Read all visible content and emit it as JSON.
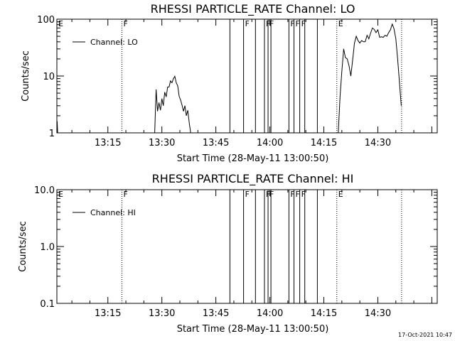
{
  "footer": {
    "date": "17-Oct-2021 10:47"
  },
  "chart_data": [
    {
      "type": "line",
      "title": "RHESSI PARTICLE_RATE Channel: LO",
      "xlabel": "Start Time (28-May-11 13:00:50)",
      "ylabel": "Counts/sec",
      "yscale": "log",
      "ylim": [
        1,
        100
      ],
      "xlim_minutes": [
        0.83,
        60
      ],
      "x_ticks": [
        15,
        30,
        45,
        60,
        75,
        90
      ],
      "x_tick_labels": [
        "13:15",
        "13:30",
        "13:45",
        "14:00",
        "14:15",
        "14:30"
      ],
      "y_ticks": [
        1,
        10,
        100
      ],
      "y_tick_labels": [
        "1",
        "10",
        "100"
      ],
      "legend": {
        "position": "top-left",
        "entries": [
          "Channel: LO"
        ]
      },
      "series": [
        {
          "name": "Channel: LO",
          "segments": [
            [
              [
                0.9,
                1.6
              ],
              [
                1.05,
                1.0
              ]
            ],
            [
              [
                28.0,
                1.0
              ],
              [
                28.4,
                5.8
              ],
              [
                28.8,
                2.4
              ],
              [
                29.2,
                3.4
              ],
              [
                29.6,
                2.5
              ],
              [
                30.0,
                4.0
              ],
              [
                30.4,
                3.0
              ],
              [
                30.8,
                5.2
              ],
              [
                31.2,
                4.3
              ],
              [
                31.6,
                6.4
              ],
              [
                32.0,
                6.4
              ],
              [
                32.4,
                8.2
              ],
              [
                32.8,
                7.6
              ],
              [
                33.2,
                9.0
              ],
              [
                33.6,
                9.9
              ],
              [
                34.0,
                7.6
              ],
              [
                34.4,
                6.7
              ],
              [
                34.8,
                4.4
              ],
              [
                35.2,
                3.8
              ],
              [
                35.6,
                3.1
              ],
              [
                36.0,
                2.4
              ],
              [
                36.4,
                3.0
              ],
              [
                36.8,
                2.0
              ],
              [
                37.2,
                2.5
              ],
              [
                37.6,
                1.5
              ],
              [
                38.0,
                1.0
              ]
            ],
            [
              [
                79.0,
                1.0
              ],
              [
                79.5,
                4.3
              ],
              [
                80.0,
                12.0
              ],
              [
                80.5,
                30.0
              ],
              [
                81.0,
                21.0
              ],
              [
                81.5,
                20.0
              ],
              [
                82.0,
                15.0
              ],
              [
                82.5,
                10.0
              ],
              [
                83.0,
                19.0
              ],
              [
                83.5,
                38.0
              ],
              [
                84.0,
                50.0
              ],
              [
                84.5,
                42.0
              ],
              [
                85.0,
                38.0
              ],
              [
                85.5,
                42.0
              ],
              [
                86.0,
                40.0
              ],
              [
                86.5,
                40.0
              ],
              [
                87.0,
                52.0
              ],
              [
                87.5,
                45.0
              ],
              [
                88.0,
                57.0
              ],
              [
                88.5,
                70.0
              ],
              [
                89.0,
                66.0
              ],
              [
                89.5,
                58.0
              ],
              [
                90.0,
                65.0
              ],
              [
                90.5,
                48.0
              ],
              [
                91.0,
                49.0
              ],
              [
                91.5,
                48.0
              ],
              [
                92.0,
                52.0
              ],
              [
                92.5,
                50.0
              ],
              [
                93.0,
                58.0
              ],
              [
                93.5,
                65.0
              ],
              [
                94.0,
                82.0
              ],
              [
                94.5,
                68.0
              ],
              [
                95.0,
                45.0
              ],
              [
                95.5,
                20.0
              ],
              [
                96.0,
                8.0
              ],
              [
                96.5,
                3.0
              ]
            ]
          ]
        }
      ],
      "flags": [
        {
          "time": 0.83,
          "label": "E",
          "style": "none"
        },
        {
          "time": 18.9,
          "label": "F",
          "style": "dotted"
        },
        {
          "time": 48.9,
          "label": "",
          "style": "solid"
        },
        {
          "time": 52.7,
          "label": "F",
          "style": "solid"
        },
        {
          "time": 56.0,
          "label": "",
          "style": "solid"
        },
        {
          "time": 58.5,
          "label": "F",
          "style": "solid"
        },
        {
          "time": 59.5,
          "label": "F",
          "style": "solid"
        },
        {
          "time": 60.3,
          "label": "",
          "style": "solid"
        },
        {
          "time": 65.3,
          "label": "F",
          "style": "solid"
        },
        {
          "time": 66.7,
          "label": "F",
          "style": "solid"
        },
        {
          "time": 68.3,
          "label": "F",
          "style": "solid"
        },
        {
          "time": 69.7,
          "label": "",
          "style": "solid"
        },
        {
          "time": 73.2,
          "label": "",
          "style": "solid"
        },
        {
          "time": 78.6,
          "label": "E",
          "style": "dotted"
        },
        {
          "time": 96.6,
          "label": "",
          "style": "dotted"
        }
      ]
    },
    {
      "type": "line",
      "title": "RHESSI PARTICLE_RATE Channel: HI",
      "xlabel": "Start Time (28-May-11 13:00:50)",
      "ylabel": "Counts/sec",
      "yscale": "log",
      "ylim": [
        0.1,
        10
      ],
      "x_ticks": [
        15,
        30,
        45,
        60,
        75,
        90
      ],
      "x_tick_labels": [
        "13:15",
        "13:30",
        "13:45",
        "14:00",
        "14:15",
        "14:30"
      ],
      "y_ticks": [
        0.1,
        1,
        10
      ],
      "y_tick_labels": [
        "0.1",
        "1.0",
        "10.0"
      ],
      "legend": {
        "position": "top-left",
        "entries": [
          "Channel: HI"
        ]
      },
      "series": [
        {
          "name": "Channel: HI",
          "segments": []
        }
      ],
      "flags": [
        {
          "time": 0.83,
          "label": "E",
          "style": "none"
        },
        {
          "time": 18.9,
          "label": "F",
          "style": "dotted"
        },
        {
          "time": 48.9,
          "label": "",
          "style": "solid"
        },
        {
          "time": 52.7,
          "label": "F",
          "style": "solid"
        },
        {
          "time": 56.0,
          "label": "",
          "style": "solid"
        },
        {
          "time": 58.5,
          "label": "F",
          "style": "solid"
        },
        {
          "time": 59.5,
          "label": "F",
          "style": "solid"
        },
        {
          "time": 60.3,
          "label": "",
          "style": "solid"
        },
        {
          "time": 65.3,
          "label": "F",
          "style": "solid"
        },
        {
          "time": 66.7,
          "label": "F",
          "style": "solid"
        },
        {
          "time": 68.3,
          "label": "F",
          "style": "solid"
        },
        {
          "time": 69.7,
          "label": "",
          "style": "solid"
        },
        {
          "time": 73.2,
          "label": "",
          "style": "solid"
        },
        {
          "time": 78.6,
          "label": "E",
          "style": "dotted"
        },
        {
          "time": 96.6,
          "label": "",
          "style": "dotted"
        }
      ]
    }
  ]
}
